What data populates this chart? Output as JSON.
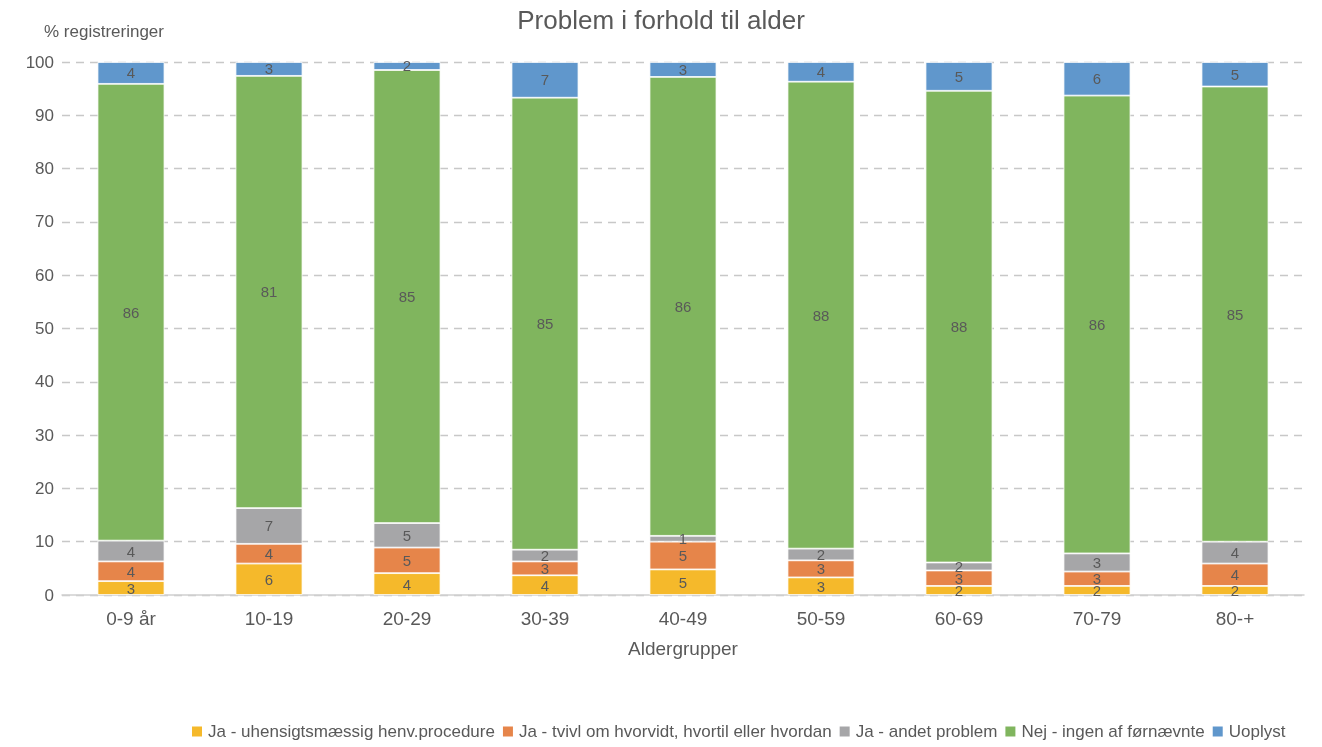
{
  "chart_data": {
    "type": "bar",
    "title": "Problem i forhold til alder",
    "xlabel": "Aldergrupper",
    "ylabel": "% registreringer",
    "categories": [
      "0-9 år",
      "10-19",
      "20-29",
      "30-39",
      "40-49",
      "50-59",
      "60-69",
      "70-79",
      "80-+"
    ],
    "stacked": true,
    "ylim": [
      0,
      100
    ],
    "yticks": [
      0,
      10,
      20,
      30,
      40,
      50,
      60,
      70,
      80,
      90,
      100
    ],
    "grid": "y",
    "legend": "bottom",
    "series": [
      {
        "name": "Ja - uhensigtsmæssig henv.procedure",
        "color": "#f5b92b",
        "values": [
          2.6,
          5.9,
          4.1,
          3.7,
          4.8,
          3.3,
          1.7,
          1.7,
          1.7
        ],
        "value_labels": [
          "3",
          "6",
          "4",
          "4",
          "5",
          "3",
          "2",
          "2",
          "2"
        ]
      },
      {
        "name": "Ja - tvivl om hvorvidt, hvortil eller hvordan",
        "color": "#e6854a",
        "values": [
          3.7,
          3.7,
          4.8,
          2.6,
          5.2,
          3.2,
          2.9,
          2.7,
          4.2
        ],
        "value_labels": [
          "4",
          "4",
          "5",
          "3",
          "5",
          "3",
          "3",
          "3",
          "4"
        ]
      },
      {
        "name": "Ja - andet problem",
        "color": "#a6a6a8",
        "values": [
          3.9,
          6.7,
          4.6,
          2.2,
          1.1,
          2.2,
          1.5,
          3.4,
          4.1
        ],
        "value_labels": [
          "4",
          "7",
          "5",
          "2",
          "1",
          "2",
          "2",
          "3",
          "4"
        ]
      },
      {
        "name": "Nej - ingen af førnævnte",
        "color": "#80b55e",
        "values": [
          85.7,
          81.1,
          85.0,
          84.8,
          86.1,
          87.6,
          88.5,
          85.9,
          85.4
        ],
        "value_labels": [
          "86",
          "81",
          "85",
          "85",
          "86",
          "88",
          "88",
          "86",
          "85"
        ]
      },
      {
        "name": "Uoplyst",
        "color": "#6097cc",
        "values": [
          4.1,
          2.6,
          1.5,
          6.7,
          2.8,
          3.7,
          5.4,
          6.3,
          4.6
        ],
        "value_labels": [
          "4",
          "3",
          "2",
          "7",
          "3",
          "4",
          "5",
          "6",
          "5"
        ]
      }
    ]
  }
}
